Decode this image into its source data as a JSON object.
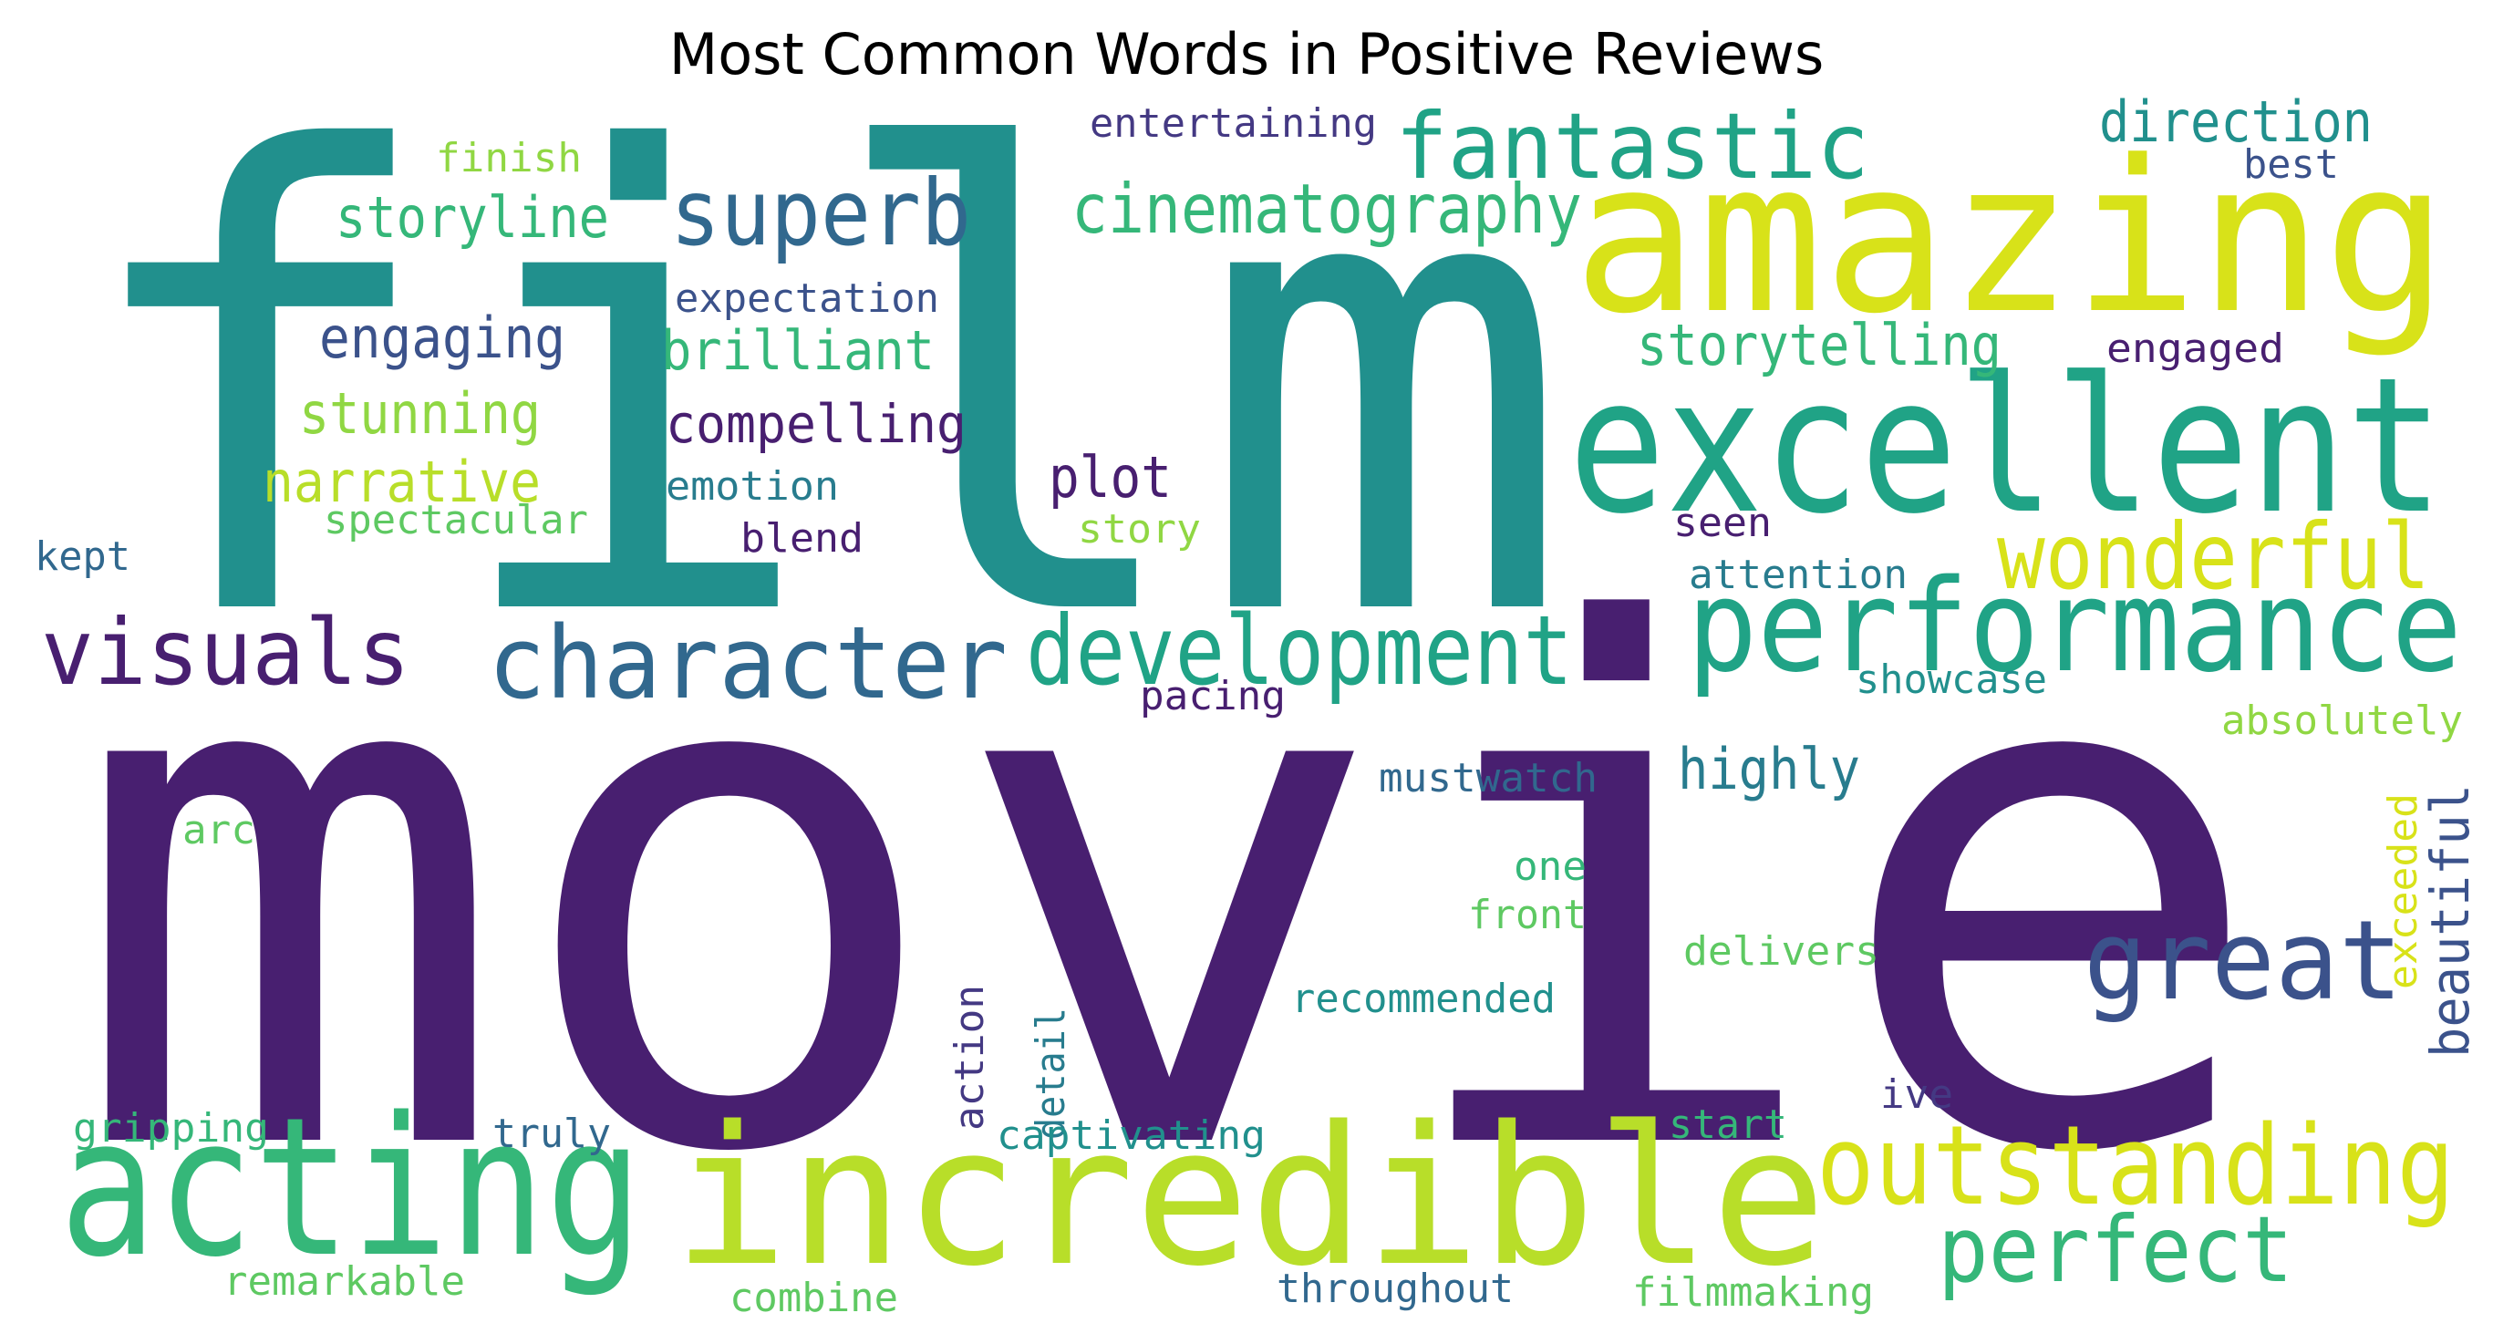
{
  "title": "Most Common Words in Positive Reviews",
  "colors": {
    "dark_purple": "#481f70",
    "indigo": "#443983",
    "slate_blue": "#3b528b",
    "steel_blue": "#31688e",
    "blue_teal": "#287c8e",
    "teal": "#21908d",
    "sea_green": "#20a386",
    "green": "#35b779",
    "light_green": "#5ec962",
    "yellow_green": "#90d743",
    "lime": "#b8de29",
    "yellow": "#d8e219"
  },
  "words": [
    {
      "text": "movie",
      "color": "dark_purple"
    },
    {
      "text": "film",
      "color": "teal"
    },
    {
      "text": "amazing",
      "color": "yellow"
    },
    {
      "text": "excellent",
      "color": "sea_green"
    },
    {
      "text": "incredible",
      "color": "lime"
    },
    {
      "text": "acting",
      "color": "green"
    },
    {
      "text": "performance",
      "color": "sea_green"
    },
    {
      "text": "character",
      "color": "steel_blue"
    },
    {
      "text": "development",
      "color": "sea_green"
    },
    {
      "text": "outstanding",
      "color": "yellow"
    },
    {
      "text": "great",
      "color": "slate_blue"
    },
    {
      "text": "fantastic",
      "color": "sea_green"
    },
    {
      "text": "superb",
      "color": "steel_blue"
    },
    {
      "text": "visuals",
      "color": "dark_purple"
    },
    {
      "text": "wonderful",
      "color": "yellow"
    },
    {
      "text": "perfect",
      "color": "green"
    },
    {
      "text": "cinematography",
      "color": "green"
    },
    {
      "text": "direction",
      "color": "teal"
    },
    {
      "text": "storytelling",
      "color": "green"
    },
    {
      "text": "storyline",
      "color": "green"
    },
    {
      "text": "engaging",
      "color": "slate_blue"
    },
    {
      "text": "brilliant",
      "color": "green"
    },
    {
      "text": "stunning",
      "color": "yellow_green"
    },
    {
      "text": "compelling",
      "color": "dark_purple"
    },
    {
      "text": "narrative",
      "color": "lime"
    },
    {
      "text": "plot",
      "color": "dark_purple"
    },
    {
      "text": "highly",
      "color": "blue_teal"
    },
    {
      "text": "beautiful",
      "color": "slate_blue"
    },
    {
      "text": "entertaining",
      "color": "indigo"
    },
    {
      "text": "finish",
      "color": "yellow_green"
    },
    {
      "text": "best",
      "color": "slate_blue"
    },
    {
      "text": "expectation",
      "color": "slate_blue"
    },
    {
      "text": "engaged",
      "color": "dark_purple"
    },
    {
      "text": "emotion",
      "color": "blue_teal"
    },
    {
      "text": "spectacular",
      "color": "light_green"
    },
    {
      "text": "blend",
      "color": "dark_purple"
    },
    {
      "text": "story",
      "color": "yellow_green"
    },
    {
      "text": "seen",
      "color": "dark_purple"
    },
    {
      "text": "attention",
      "color": "blue_teal"
    },
    {
      "text": "kept",
      "color": "steel_blue"
    },
    {
      "text": "pacing",
      "color": "dark_purple"
    },
    {
      "text": "showcase",
      "color": "teal"
    },
    {
      "text": "absolutely",
      "color": "yellow_green"
    },
    {
      "text": "mustwatch",
      "color": "steel_blue"
    },
    {
      "text": "arc",
      "color": "light_green"
    },
    {
      "text": "one",
      "color": "green"
    },
    {
      "text": "front",
      "color": "light_green"
    },
    {
      "text": "delivers",
      "color": "light_green"
    },
    {
      "text": "exceeded",
      "color": "yellow"
    },
    {
      "text": "recommended",
      "color": "teal"
    },
    {
      "text": "action",
      "color": "indigo"
    },
    {
      "text": "detail",
      "color": "blue_teal"
    },
    {
      "text": "ive",
      "color": "indigo"
    },
    {
      "text": "gripping",
      "color": "green"
    },
    {
      "text": "truly",
      "color": "steel_blue"
    },
    {
      "text": "captivating",
      "color": "teal"
    },
    {
      "text": "start",
      "color": "green"
    },
    {
      "text": "remarkable",
      "color": "light_green"
    },
    {
      "text": "throughout",
      "color": "steel_blue"
    },
    {
      "text": "filmmaking",
      "color": "light_green"
    },
    {
      "text": "combine",
      "color": "light_green"
    }
  ]
}
